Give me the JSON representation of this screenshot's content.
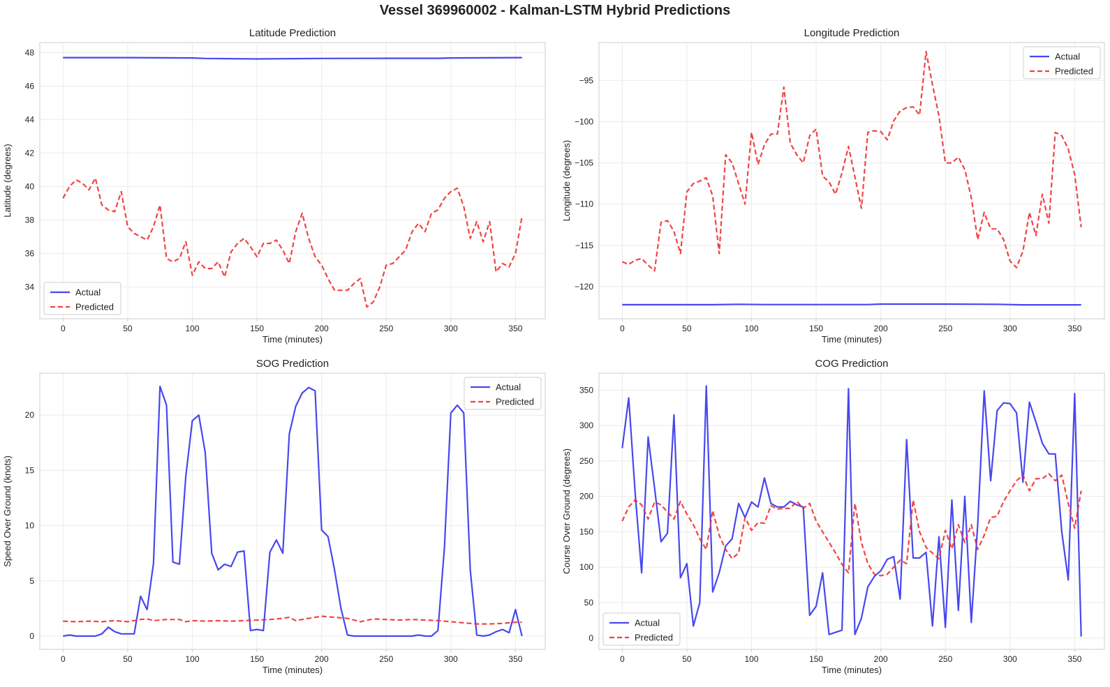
{
  "figure": {
    "title": "Vessel 369960002 - Kalman-LSTM Hybrid Predictions"
  },
  "chart_data": [
    {
      "type": "line",
      "title": "Latitude Prediction",
      "xlabel": "Time (minutes)",
      "ylabel": "Latitude (degrees)",
      "xlim": [
        -18,
        373
      ],
      "ylim": [
        32.1,
        48.6
      ],
      "xticks": [
        0,
        50,
        100,
        150,
        200,
        250,
        300,
        350
      ],
      "yticks": [
        34,
        36,
        38,
        40,
        42,
        44,
        46,
        48
      ],
      "ytick_labels": [
        "34",
        "36",
        "38",
        "40",
        "42",
        "44",
        "46",
        "48"
      ],
      "legend": "lower-left",
      "grid": true,
      "series": [
        {
          "name": "Actual",
          "color": "#3333ee",
          "dash": false,
          "x": [
            0,
            50,
            100,
            110,
            150,
            200,
            250,
            290,
            300,
            355
          ],
          "y": [
            47.7,
            47.7,
            47.68,
            47.65,
            47.62,
            47.65,
            47.66,
            47.66,
            47.68,
            47.7
          ]
        },
        {
          "name": "Predicted",
          "color": "#f03030",
          "dash": true,
          "x": [
            0,
            5,
            10,
            15,
            20,
            25,
            30,
            35,
            40,
            45,
            50,
            55,
            60,
            65,
            70,
            75,
            80,
            85,
            90,
            95,
            100,
            105,
            110,
            115,
            120,
            125,
            130,
            135,
            140,
            145,
            150,
            155,
            160,
            165,
            170,
            175,
            180,
            185,
            190,
            195,
            200,
            205,
            210,
            215,
            220,
            225,
            230,
            235,
            240,
            245,
            250,
            255,
            260,
            265,
            270,
            275,
            280,
            285,
            290,
            295,
            300,
            305,
            310,
            315,
            320,
            325,
            330,
            335,
            340,
            345,
            350,
            355
          ],
          "y": [
            39.3,
            40.0,
            40.4,
            40.2,
            39.8,
            40.5,
            38.9,
            38.6,
            38.5,
            39.7,
            37.6,
            37.2,
            37.0,
            36.8,
            37.6,
            38.9,
            35.7,
            35.5,
            35.7,
            36.7,
            34.7,
            35.5,
            35.1,
            35.1,
            35.5,
            34.6,
            36.1,
            36.6,
            36.9,
            36.4,
            35.8,
            36.6,
            36.6,
            36.8,
            36.2,
            35.4,
            37.3,
            38.4,
            36.9,
            35.8,
            35.3,
            34.5,
            33.8,
            33.8,
            33.8,
            34.2,
            34.5,
            32.8,
            33.1,
            34.0,
            35.3,
            35.4,
            35.8,
            36.2,
            37.3,
            37.8,
            37.3,
            38.4,
            38.6,
            39.3,
            39.7,
            39.9,
            38.8,
            36.9,
            37.9,
            36.7,
            37.9,
            34.9,
            35.4,
            35.2,
            36.0,
            38.2
          ]
        }
      ]
    },
    {
      "type": "line",
      "title": "Longitude Prediction",
      "xlabel": "Time (minutes)",
      "ylabel": "Longitude (degrees)",
      "xlim": [
        -18,
        373
      ],
      "ylim": [
        -123.9,
        -90.4
      ],
      "xticks": [
        0,
        50,
        100,
        150,
        200,
        250,
        300,
        350
      ],
      "yticks": [
        -120,
        -115,
        -110,
        -105,
        -100,
        -95
      ],
      "ytick_labels": [
        "−120",
        "−115",
        "−110",
        "−105",
        "−100",
        "−95"
      ],
      "legend": "top-right",
      "grid": true,
      "series": [
        {
          "name": "Actual",
          "color": "#3333ee",
          "dash": false,
          "x": [
            0,
            50,
            70,
            90,
            110,
            150,
            190,
            200,
            250,
            290,
            310,
            355
          ],
          "y": [
            -122.2,
            -122.2,
            -122.2,
            -122.15,
            -122.18,
            -122.18,
            -122.18,
            -122.12,
            -122.12,
            -122.15,
            -122.22,
            -122.22
          ]
        },
        {
          "name": "Predicted",
          "color": "#f03030",
          "dash": true,
          "x": [
            0,
            5,
            10,
            15,
            20,
            25,
            30,
            35,
            40,
            45,
            50,
            55,
            60,
            65,
            70,
            75,
            80,
            85,
            90,
            95,
            100,
            105,
            110,
            115,
            120,
            125,
            130,
            135,
            140,
            145,
            150,
            155,
            160,
            165,
            170,
            175,
            180,
            185,
            190,
            195,
            200,
            205,
            210,
            215,
            220,
            225,
            230,
            235,
            240,
            245,
            250,
            255,
            260,
            265,
            270,
            275,
            280,
            285,
            290,
            295,
            300,
            305,
            310,
            315,
            320,
            325,
            330,
            335,
            340,
            345,
            350,
            355
          ],
          "y": [
            -117.0,
            -117.3,
            -116.8,
            -116.6,
            -117.4,
            -118.1,
            -112.2,
            -112.0,
            -113.3,
            -116.0,
            -108.5,
            -107.5,
            -107.2,
            -106.8,
            -109.0,
            -116.0,
            -104.0,
            -105.0,
            -107.5,
            -110.0,
            -101.3,
            -105.2,
            -102.8,
            -101.5,
            -101.5,
            -95.8,
            -102.6,
            -104.0,
            -105.0,
            -101.7,
            -100.9,
            -106.6,
            -107.3,
            -108.8,
            -106.2,
            -103.0,
            -106.7,
            -110.5,
            -101.3,
            -101.1,
            -101.2,
            -102.2,
            -99.9,
            -98.7,
            -98.3,
            -98.2,
            -99.2,
            -91.5,
            -95.5,
            -99.3,
            -105.0,
            -105.0,
            -104.3,
            -105.8,
            -109.2,
            -114.3,
            -111.0,
            -113.0,
            -113.0,
            -114.3,
            -116.9,
            -117.7,
            -115.7,
            -111.0,
            -113.8,
            -108.8,
            -112.3,
            -101.3,
            -101.7,
            -103.3,
            -106.4,
            -112.8
          ]
        }
      ]
    },
    {
      "type": "line",
      "title": "SOG Prediction",
      "xlabel": "Time (minutes)",
      "ylabel": "Speed Over Ground (knots)",
      "xlim": [
        -18,
        373
      ],
      "ylim": [
        -1.2,
        23.8
      ],
      "xticks": [
        0,
        50,
        100,
        150,
        200,
        250,
        300,
        350
      ],
      "yticks": [
        0,
        5,
        10,
        15,
        20
      ],
      "ytick_labels": [
        "0",
        "5",
        "10",
        "15",
        "20"
      ],
      "legend": "top-right",
      "grid": true,
      "series": [
        {
          "name": "Actual",
          "color": "#3333ee",
          "dash": false,
          "x": [
            0,
            5,
            10,
            15,
            20,
            25,
            30,
            35,
            40,
            45,
            50,
            55,
            60,
            65,
            70,
            75,
            80,
            85,
            90,
            95,
            100,
            105,
            110,
            115,
            120,
            125,
            130,
            135,
            140,
            145,
            150,
            155,
            160,
            165,
            170,
            175,
            180,
            185,
            190,
            195,
            200,
            205,
            210,
            215,
            220,
            225,
            230,
            235,
            240,
            245,
            250,
            255,
            260,
            265,
            270,
            275,
            280,
            285,
            290,
            295,
            300,
            305,
            310,
            315,
            320,
            325,
            330,
            335,
            340,
            345,
            350,
            355
          ],
          "y": [
            0.0,
            0.1,
            0.0,
            0.0,
            0.0,
            0.0,
            0.2,
            0.8,
            0.4,
            0.2,
            0.2,
            0.2,
            3.6,
            2.4,
            6.6,
            22.6,
            20.9,
            6.7,
            6.5,
            14.5,
            19.5,
            20.0,
            16.6,
            7.5,
            6.0,
            6.5,
            6.3,
            7.6,
            7.7,
            0.5,
            0.6,
            0.5,
            7.6,
            8.7,
            7.5,
            18.3,
            20.8,
            22.0,
            22.5,
            22.2,
            9.6,
            9.0,
            6.0,
            2.5,
            0.1,
            0.0,
            0.0,
            0.0,
            0.0,
            0.0,
            0.0,
            0.0,
            0.0,
            0.0,
            0.0,
            0.1,
            0.0,
            0.0,
            0.5,
            8.0,
            20.2,
            20.9,
            20.2,
            6.0,
            0.1,
            0.0,
            0.1,
            0.4,
            0.6,
            0.3,
            2.4,
            0.0
          ]
        },
        {
          "name": "Predicted",
          "color": "#f03030",
          "dash": true,
          "x": [
            0,
            10,
            20,
            30,
            40,
            50,
            60,
            65,
            70,
            80,
            90,
            95,
            100,
            110,
            120,
            130,
            140,
            150,
            160,
            170,
            175,
            180,
            190,
            200,
            210,
            220,
            230,
            240,
            250,
            260,
            270,
            280,
            290,
            300,
            310,
            320,
            330,
            340,
            350,
            355
          ],
          "y": [
            1.35,
            1.3,
            1.35,
            1.3,
            1.4,
            1.3,
            1.5,
            1.55,
            1.4,
            1.5,
            1.5,
            1.3,
            1.4,
            1.35,
            1.4,
            1.35,
            1.4,
            1.45,
            1.5,
            1.6,
            1.7,
            1.4,
            1.6,
            1.8,
            1.7,
            1.6,
            1.3,
            1.55,
            1.5,
            1.45,
            1.5,
            1.45,
            1.4,
            1.3,
            1.2,
            1.1,
            1.1,
            1.15,
            1.25,
            1.25
          ]
        }
      ]
    },
    {
      "type": "line",
      "title": "COG Prediction",
      "xlabel": "Time (minutes)",
      "ylabel": "Course Over Ground (degrees)",
      "xlim": [
        -18,
        373
      ],
      "ylim": [
        -16,
        374
      ],
      "xticks": [
        0,
        50,
        100,
        150,
        200,
        250,
        300,
        350
      ],
      "yticks": [
        0,
        50,
        100,
        150,
        200,
        250,
        300,
        350
      ],
      "ytick_labels": [
        "0",
        "50",
        "100",
        "150",
        "200",
        "250",
        "300",
        "350"
      ],
      "legend": "lower-left",
      "grid": true,
      "series": [
        {
          "name": "Actual",
          "color": "#3333ee",
          "dash": false,
          "x": [
            0,
            5,
            10,
            15,
            20,
            25,
            30,
            35,
            40,
            45,
            50,
            55,
            60,
            65,
            70,
            75,
            80,
            85,
            90,
            95,
            100,
            105,
            110,
            115,
            120,
            125,
            130,
            135,
            140,
            145,
            150,
            155,
            160,
            165,
            170,
            175,
            180,
            185,
            190,
            195,
            200,
            205,
            210,
            215,
            220,
            225,
            230,
            235,
            240,
            245,
            250,
            255,
            260,
            265,
            270,
            275,
            280,
            285,
            290,
            295,
            300,
            305,
            310,
            315,
            320,
            325,
            330,
            335,
            340,
            345,
            350,
            355
          ],
          "y": [
            268,
            339,
            205,
            92,
            284,
            212,
            136,
            148,
            315,
            85,
            105,
            17,
            50,
            356,
            65,
            92,
            130,
            140,
            190,
            170,
            192,
            185,
            226,
            190,
            185,
            185,
            193,
            188,
            185,
            32,
            45,
            92,
            5,
            8,
            11,
            352,
            5,
            28,
            72,
            87,
            95,
            111,
            115,
            55,
            280,
            113,
            113,
            121,
            17,
            143,
            15,
            195,
            39,
            200,
            22,
            160,
            349,
            222,
            321,
            332,
            331,
            318,
            220,
            333,
            305,
            275,
            260,
            260,
            150,
            82,
            345,
            2
          ]
        },
        {
          "name": "Predicted",
          "color": "#f03030",
          "dash": true,
          "x": [
            0,
            5,
            10,
            15,
            20,
            25,
            30,
            35,
            40,
            45,
            50,
            55,
            60,
            65,
            70,
            75,
            80,
            85,
            90,
            95,
            100,
            105,
            110,
            115,
            120,
            125,
            130,
            135,
            140,
            145,
            150,
            155,
            160,
            165,
            170,
            175,
            180,
            185,
            190,
            195,
            200,
            205,
            210,
            215,
            220,
            225,
            230,
            235,
            240,
            245,
            250,
            255,
            260,
            265,
            270,
            275,
            280,
            285,
            290,
            295,
            300,
            305,
            310,
            315,
            320,
            325,
            330,
            335,
            340,
            345,
            350,
            355
          ],
          "y": [
            165,
            185,
            195,
            188,
            168,
            192,
            188,
            178,
            168,
            193,
            175,
            160,
            140,
            125,
            180,
            145,
            125,
            112,
            120,
            170,
            152,
            163,
            162,
            187,
            182,
            183,
            183,
            193,
            183,
            190,
            165,
            150,
            135,
            120,
            104,
            92,
            190,
            135,
            105,
            90,
            88,
            90,
            100,
            110,
            105,
            195,
            150,
            128,
            120,
            112,
            152,
            126,
            160,
            135,
            160,
            125,
            145,
            170,
            172,
            193,
            208,
            222,
            230,
            208,
            225,
            225,
            232,
            222,
            230,
            190,
            155,
            208
          ]
        }
      ]
    }
  ]
}
